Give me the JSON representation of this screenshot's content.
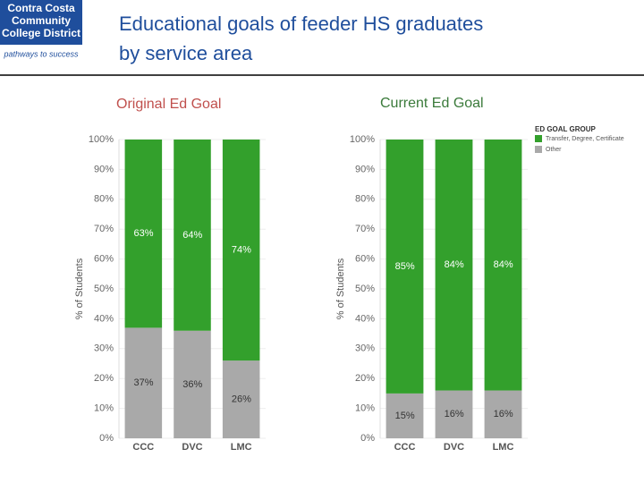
{
  "logo": {
    "name": [
      "Contra Costa",
      "Community",
      "College District"
    ],
    "tagline": "pathways to success"
  },
  "title": [
    "Educational goals of feeder HS graduates",
    "by service area"
  ],
  "chart_data": [
    {
      "type": "bar",
      "stacked": true,
      "title": "Original Ed Goal",
      "y_label": "% of Students",
      "categories": [
        "CCC",
        "DVC",
        "LMC"
      ],
      "series": [
        {
          "color": "#33a02c",
          "values": [
            63,
            64,
            74
          ],
          "value_labels": [
            "63%",
            "64%",
            "74%"
          ]
        },
        {
          "color": "#a9a9a9",
          "values": [
            37,
            36,
            26
          ],
          "value_labels": [
            "37%",
            "36%",
            "26%"
          ]
        }
      ],
      "ylim": [
        0,
        100
      ],
      "yticks": [
        {
          "value": 0,
          "label": "0%"
        },
        {
          "value": 10,
          "label": "10%"
        },
        {
          "value": 20,
          "label": "20%"
        },
        {
          "value": 30,
          "label": "30%"
        },
        {
          "value": 40,
          "label": "40%"
        },
        {
          "value": 50,
          "label": "50%"
        },
        {
          "value": 60,
          "label": "60%"
        },
        {
          "value": 70,
          "label": "70%"
        },
        {
          "value": 80,
          "label": "80%"
        },
        {
          "value": 90,
          "label": "90%"
        },
        {
          "value": 100,
          "label": "100%"
        }
      ],
      "grid": true
    },
    {
      "type": "bar",
      "stacked": true,
      "title": "Current Ed Goal",
      "y_label": "% of Students",
      "legend_title": "ED GOAL GROUP",
      "categories": [
        "CCC",
        "DVC",
        "LMC"
      ],
      "series": [
        {
          "name": "Transfer, Degree, Certificate",
          "color": "#33a02c",
          "values": [
            85,
            84,
            84
          ],
          "value_labels": [
            "85%",
            "84%",
            "84%"
          ]
        },
        {
          "name": "Other",
          "color": "#a9a9a9",
          "values": [
            15,
            16,
            16
          ],
          "value_labels": [
            "15%",
            "16%",
            "16%"
          ]
        }
      ],
      "ylim": [
        0,
        100
      ],
      "yticks": [
        {
          "value": 0,
          "label": "0%"
        },
        {
          "value": 10,
          "label": "10%"
        },
        {
          "value": 20,
          "label": "20%"
        },
        {
          "value": 30,
          "label": "30%"
        },
        {
          "value": 40,
          "label": "40%"
        },
        {
          "value": 50,
          "label": "50%"
        },
        {
          "value": 60,
          "label": "60%"
        },
        {
          "value": 70,
          "label": "70%"
        },
        {
          "value": 80,
          "label": "80%"
        },
        {
          "value": 90,
          "label": "90%"
        },
        {
          "value": 100,
          "label": "100%"
        }
      ],
      "grid": true
    }
  ]
}
